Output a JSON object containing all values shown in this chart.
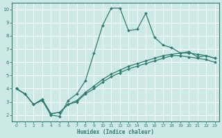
{
  "xlabel": "Humidex (Indice chaleur)",
  "bg_color": "#cce9e5",
  "grid_color": "#ffffff",
  "line_color": "#2d7a6e",
  "xlim": [
    -0.5,
    23.5
  ],
  "ylim": [
    1.5,
    10.5
  ],
  "xticks": [
    0,
    1,
    2,
    3,
    4,
    5,
    6,
    7,
    8,
    9,
    10,
    11,
    12,
    13,
    14,
    15,
    16,
    17,
    18,
    19,
    20,
    21,
    22,
    23
  ],
  "yticks": [
    2,
    3,
    4,
    5,
    6,
    7,
    8,
    9,
    10
  ],
  "line1_x": [
    0,
    1,
    2,
    3,
    4,
    5,
    6,
    7,
    8,
    9,
    10,
    11,
    12,
    13,
    14,
    15,
    16,
    17,
    18,
    19,
    20,
    21,
    22,
    23
  ],
  "line1_y": [
    4.0,
    3.6,
    2.8,
    3.1,
    2.0,
    1.9,
    3.1,
    3.6,
    4.6,
    6.7,
    8.8,
    10.1,
    10.1,
    8.4,
    8.5,
    9.7,
    7.9,
    7.3,
    7.1,
    6.7,
    6.8,
    6.4,
    6.5,
    6.3
  ],
  "line2_x": [
    0,
    1,
    2,
    3,
    4,
    5,
    6,
    7,
    8,
    9,
    10,
    11,
    12,
    13,
    14,
    15,
    16,
    17,
    18,
    19,
    20,
    21,
    22,
    23
  ],
  "line2_y": [
    4.0,
    3.6,
    2.8,
    3.2,
    2.1,
    2.2,
    2.8,
    3.0,
    3.6,
    4.0,
    4.5,
    4.9,
    5.2,
    5.5,
    5.7,
    5.9,
    6.1,
    6.3,
    6.5,
    6.5,
    6.4,
    6.3,
    6.2,
    6.0
  ],
  "line3_x": [
    0,
    1,
    2,
    3,
    4,
    5,
    6,
    7,
    8,
    9,
    10,
    11,
    12,
    13,
    14,
    15,
    16,
    17,
    18,
    19,
    20,
    21,
    22,
    23
  ],
  "line3_y": [
    4.0,
    3.6,
    2.8,
    3.2,
    2.1,
    2.2,
    2.8,
    3.1,
    3.7,
    4.2,
    4.7,
    5.1,
    5.4,
    5.7,
    5.9,
    6.1,
    6.3,
    6.5,
    6.6,
    6.7,
    6.7,
    6.6,
    6.5,
    6.3
  ]
}
